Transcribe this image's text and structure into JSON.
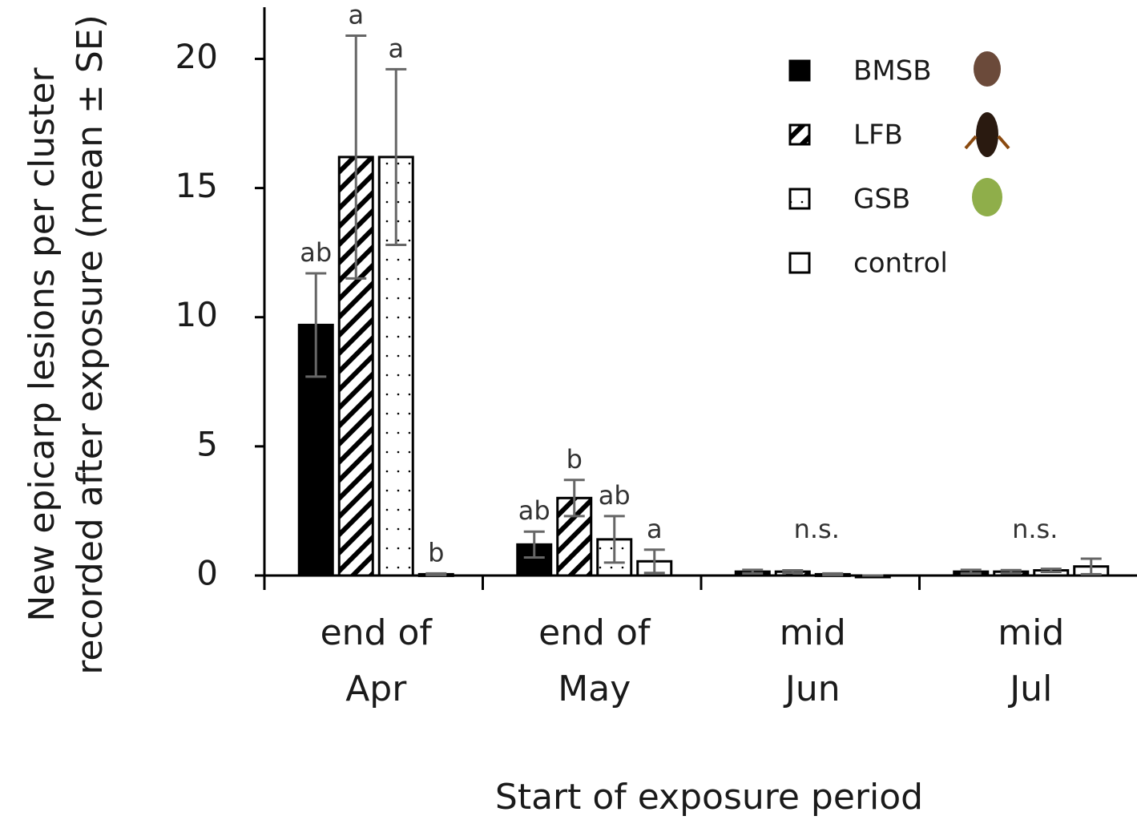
{
  "chart_data": {
    "type": "bar",
    "ylabel": [
      "New epicarp lesions per cluster",
      "recorded after exposure (mean ± SE)"
    ],
    "xlabel": "Start of exposure period",
    "categories": [
      "end of\nApr",
      "end of\nMay",
      "mid\nJun",
      "mid\nJul"
    ],
    "group_notes": [
      null,
      null,
      "n.s.",
      "n.s."
    ],
    "series": [
      {
        "name": "BMSB",
        "color": "#000000",
        "pattern": "solid",
        "values": [
          9.7,
          1.2,
          0.15,
          0.15
        ],
        "errors": [
          2.0,
          0.5,
          0.07,
          0.07
        ],
        "letters": [
          "ab",
          "ab",
          null,
          null
        ]
      },
      {
        "name": "LFB",
        "color": "#000000",
        "pattern": "hatch",
        "values": [
          16.2,
          3.0,
          0.15,
          0.15
        ],
        "errors": [
          4.7,
          0.7,
          0.05,
          0.06
        ],
        "letters": [
          "a",
          "b",
          null,
          null
        ]
      },
      {
        "name": "GSB",
        "color": "#000000",
        "pattern": "dots",
        "values": [
          16.2,
          1.4,
          0.05,
          0.2
        ],
        "errors": [
          3.4,
          0.9,
          0.03,
          0.06
        ],
        "letters": [
          "a",
          "ab",
          null,
          null
        ]
      },
      {
        "name": "control",
        "color": "#000000",
        "pattern": "none",
        "values": [
          0.05,
          0.55,
          0,
          0.35
        ],
        "errors": [
          0.03,
          0.45,
          0,
          0.3
        ],
        "letters": [
          "b",
          "a",
          null,
          null
        ]
      }
    ],
    "ylim": [
      0,
      22
    ],
    "yticks": [
      0,
      5,
      10,
      15,
      20
    ]
  }
}
